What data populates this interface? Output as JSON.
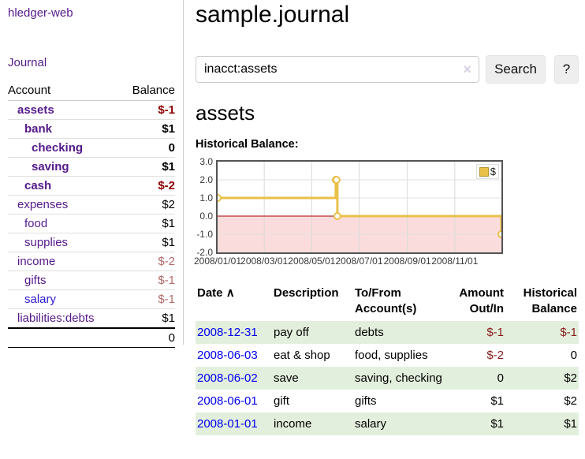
{
  "brand": "hledger-web",
  "nav": {
    "journal": "Journal"
  },
  "colors": {
    "link_purple": "#551a8b",
    "link_blue": "#0000ee",
    "salary_link_blue": "#2a1ad6",
    "negative_strong_red": "#8e0000",
    "negative_muted_red": "#b36a6a",
    "table_negative_red": "#8b1c1c",
    "row_stripe_green": "#e3efdd",
    "chart_line_gold": "#e9c048",
    "chart_negative_fill_pink": "#fbdcdc",
    "chart_zero_line_red": "#aa0000"
  },
  "sidebar_table": {
    "headers": {
      "account": "Account",
      "balance": "Balance"
    },
    "rows": [
      {
        "name": "assets",
        "depth": 1,
        "bold": true,
        "balance": "$-1",
        "balance_style": "neg-strong"
      },
      {
        "name": "bank",
        "depth": 2,
        "bold": true,
        "balance": "$1",
        "balance_style": "pos-strong"
      },
      {
        "name": "checking",
        "depth": 3,
        "bold": true,
        "balance": "0",
        "balance_style": "pos-strong"
      },
      {
        "name": "saving",
        "depth": 3,
        "bold": true,
        "balance": "$1",
        "balance_style": "pos-strong"
      },
      {
        "name": "cash",
        "depth": 2,
        "bold": true,
        "balance": "$-2",
        "balance_style": "neg-strong"
      },
      {
        "name": "expenses",
        "depth": 1,
        "bold": false,
        "balance": "$2",
        "balance_style": "pos"
      },
      {
        "name": "food",
        "depth": 2,
        "bold": false,
        "balance": "$1",
        "balance_style": "pos"
      },
      {
        "name": "supplies",
        "depth": 2,
        "bold": false,
        "balance": "$1",
        "balance_style": "pos"
      },
      {
        "name": "income",
        "depth": 1,
        "bold": false,
        "balance": "$-2",
        "balance_style": "neg-muted"
      },
      {
        "name": "gifts",
        "depth": 2,
        "bold": false,
        "balance": "$-1",
        "balance_style": "neg-muted"
      },
      {
        "name": "salary",
        "depth": 2,
        "bold": false,
        "balance": "$-1",
        "balance_style": "neg-muted",
        "link_color": "blue"
      },
      {
        "name": "liabilities:debts",
        "depth": 1,
        "bold": false,
        "balance": "$1",
        "balance_style": "pos"
      }
    ],
    "total": "0"
  },
  "header": {
    "title": "sample.journal"
  },
  "search": {
    "value": "inacct:assets",
    "clear_icon": "×",
    "button": "Search",
    "help_button": "?"
  },
  "account_page": {
    "title": "assets",
    "chart_label": "Historical Balance:"
  },
  "chart_data": {
    "type": "line-step",
    "title": "Historical Balance:",
    "legend_position": "top-right",
    "ylim": [
      -2,
      3
    ],
    "y_ticks": [
      "3.0",
      "2.0",
      "1.0",
      "0.0",
      "-1.0",
      "-2.0"
    ],
    "x_ticks": [
      "2008/01/01",
      "2008/03/01",
      "2008/05/01",
      "2008/07/01",
      "2008/09/01",
      "2008/11/01"
    ],
    "x_start_date": "2008-01-01",
    "x_end_date": "2008-12-31",
    "negative_fill": "#fbdcdc",
    "zero_line_color": "#aa0000",
    "series": [
      {
        "name": "$",
        "color": "#e9c048",
        "points": [
          {
            "date": "2008-01-01",
            "value": 1
          },
          {
            "date": "2008-06-01",
            "value": 2
          },
          {
            "date": "2008-06-02",
            "value": 2
          },
          {
            "date": "2008-06-03",
            "value": 0
          },
          {
            "date": "2008-12-31",
            "value": -1
          }
        ]
      }
    ]
  },
  "register_table": {
    "headers": {
      "date": "Date",
      "sort_icon": "∧",
      "description": "Description",
      "tofrom": "To/From Account(s)",
      "amount": "Amount Out/In",
      "historical": "Historical Balance"
    },
    "rows": [
      {
        "date": "2008-12-31",
        "description": "pay off",
        "accounts": "debts",
        "amount": "$-1",
        "amount_neg": true,
        "balance": "$-1",
        "balance_neg": true,
        "stripe": true
      },
      {
        "date": "2008-06-03",
        "description": "eat & shop",
        "accounts": "food, supplies",
        "amount": "$-2",
        "amount_neg": true,
        "balance": "0",
        "balance_neg": false,
        "stripe": false
      },
      {
        "date": "2008-06-02",
        "description": "save",
        "accounts": "saving, checking",
        "amount": "0",
        "amount_neg": false,
        "balance": "$2",
        "balance_neg": false,
        "stripe": true
      },
      {
        "date": "2008-06-01",
        "description": "gift",
        "accounts": "gifts",
        "amount": "$1",
        "amount_neg": false,
        "balance": "$2",
        "balance_neg": false,
        "stripe": false
      },
      {
        "date": "2008-01-01",
        "description": "income",
        "accounts": "salary",
        "amount": "$1",
        "amount_neg": false,
        "balance": "$1",
        "balance_neg": false,
        "stripe": true
      }
    ]
  }
}
